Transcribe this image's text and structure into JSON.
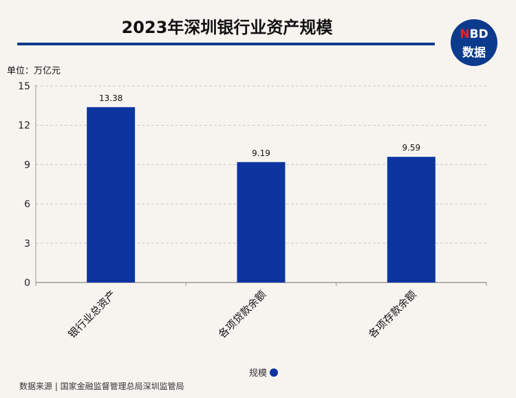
{
  "header": {
    "title": "2023年深圳银行业资产规模",
    "logo_line1_accent": "N",
    "logo_line1_rest": "BD",
    "logo_line2": "数据"
  },
  "unit_label": "单位：万亿元",
  "legend_label": "规模",
  "source_text": "数据来源 | 国家金融监督管理总局深圳监管局",
  "colors": {
    "bar": "#0c35a0",
    "brand": "#0c3a8c",
    "background": "#f7f4f0"
  },
  "chart_data": {
    "type": "bar",
    "categories": [
      "银行业总资产",
      "各项贷款余额",
      "各项存款余额"
    ],
    "series": [
      {
        "name": "规模",
        "values": [
          13.38,
          9.19,
          9.59
        ]
      }
    ],
    "data_labels": [
      "13.38",
      "9.19",
      "9.59"
    ],
    "yticks": [
      0,
      3,
      6,
      9,
      12,
      15
    ],
    "ylim": [
      0,
      15
    ],
    "grid": true,
    "legend": "bottom-center"
  }
}
